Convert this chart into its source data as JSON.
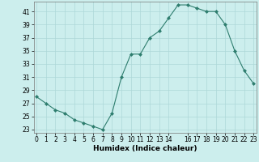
{
  "x": [
    0,
    1,
    2,
    3,
    4,
    5,
    6,
    7,
    8,
    9,
    10,
    11,
    12,
    13,
    14,
    15,
    16,
    17,
    18,
    19,
    20,
    21,
    22,
    23
  ],
  "y": [
    28,
    27,
    26,
    25.5,
    24.5,
    24,
    23.5,
    23,
    25.5,
    31,
    34.5,
    34.5,
    37,
    38,
    40,
    42,
    42,
    41.5,
    41,
    41,
    39,
    35,
    32,
    30
  ],
  "line_color": "#2e7d6e",
  "marker": "D",
  "marker_size": 2.0,
  "bg_color": "#cceeed",
  "grid_color": "#add8d8",
  "xlabel": "Humidex (Indice chaleur)",
  "xlabel_fontsize": 6.5,
  "yticks": [
    23,
    25,
    27,
    29,
    31,
    33,
    35,
    37,
    39,
    41
  ],
  "xticks": [
    0,
    1,
    2,
    3,
    4,
    5,
    6,
    7,
    8,
    9,
    10,
    11,
    12,
    13,
    14,
    16,
    17,
    18,
    19,
    20,
    21,
    22,
    23
  ],
  "xlim": [
    -0.3,
    23.3
  ],
  "ylim": [
    22.5,
    42.5
  ],
  "tick_fontsize": 5.5
}
